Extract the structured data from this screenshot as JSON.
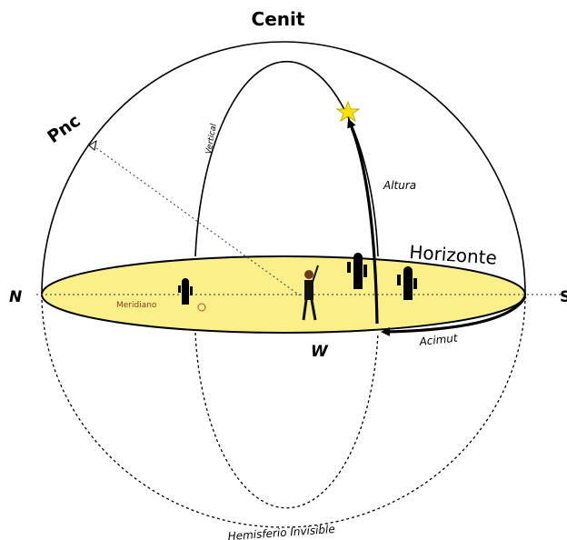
{
  "labels": {
    "zenith": "Cenit",
    "pole": "Pnc",
    "vertical": "Vertical",
    "altitude": "Altura",
    "horizon": "Horizonte",
    "north": "N",
    "south": "S",
    "meridian": "Meridiano",
    "west": "W",
    "azimuth": "Acimut",
    "hemisphere": "Hemisferio Invisible"
  }
}
